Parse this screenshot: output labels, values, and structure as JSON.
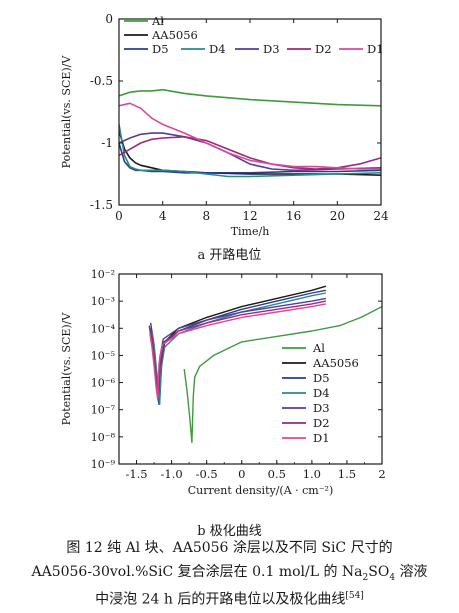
{
  "figure": {
    "subcaption_a": "a  开路电位",
    "subcaption_b": "b  极化曲线",
    "caption_line1": "图 12   纯 Al 块、AA5056 涂层以及不同 SiC 尺寸的",
    "caption_line2_pre": "AA5056-30vol.%SiC 复合涂层在 0.1 mol/L 的 Na",
    "caption_line2_sub1": "2",
    "caption_line2_mid": "SO",
    "caption_line2_sub2": "4",
    "caption_line2_post": " 溶液",
    "caption_line3_pre": "中浸泡 24 h 后的开路电位以及极化曲线",
    "caption_line3_sup": "[54]"
  },
  "chart_data": [
    {
      "type": "line",
      "xlabel": "Time/h",
      "ylabel": "Potential(vs. SCE)/V",
      "xlim": [
        0,
        24
      ],
      "ylim": [
        -1.5,
        0
      ],
      "xticks": [
        "0",
        "4",
        "8",
        "12",
        "16",
        "20",
        "24"
      ],
      "yticks": [
        "0",
        "-0.5",
        "-1",
        "-1.5"
      ],
      "legend_placement": "top",
      "series": [
        {
          "name": "Al",
          "color": "#3f9a3f",
          "x": [
            0,
            1,
            2,
            3,
            4,
            6,
            8,
            12,
            16,
            20,
            24
          ],
          "y": [
            -0.62,
            -0.59,
            -0.58,
            -0.58,
            -0.57,
            -0.6,
            -0.62,
            -0.65,
            -0.67,
            -0.69,
            -0.7
          ]
        },
        {
          "name": "AA5056",
          "color": "#1a1a1a",
          "x": [
            0,
            0.5,
            1,
            1.5,
            2,
            3,
            4,
            6,
            8,
            12,
            16,
            20,
            24
          ],
          "y": [
            -0.9,
            -1.05,
            -1.12,
            -1.16,
            -1.18,
            -1.2,
            -1.22,
            -1.23,
            -1.24,
            -1.25,
            -1.25,
            -1.25,
            -1.26
          ]
        },
        {
          "name": "D5",
          "color": "#283e8c",
          "x": [
            0,
            0.5,
            1,
            1.5,
            2,
            3,
            4,
            6,
            8,
            12,
            16,
            20,
            24
          ],
          "y": [
            -1.0,
            -1.15,
            -1.2,
            -1.22,
            -1.22,
            -1.23,
            -1.23,
            -1.24,
            -1.24,
            -1.24,
            -1.23,
            -1.23,
            -1.22
          ]
        },
        {
          "name": "D4",
          "color": "#2b8a85",
          "x": [
            0,
            0.5,
            1,
            1.5,
            2,
            3,
            4,
            6,
            8,
            10,
            12,
            16,
            20,
            24
          ],
          "y": [
            -0.85,
            -1.1,
            -1.19,
            -1.21,
            -1.22,
            -1.22,
            -1.22,
            -1.23,
            -1.25,
            -1.27,
            -1.27,
            -1.26,
            -1.25,
            -1.24
          ]
        },
        {
          "name": "D3",
          "color": "#5a3a9a",
          "x": [
            0,
            1,
            2,
            3,
            4,
            6,
            8,
            10,
            12,
            14,
            16,
            20,
            24
          ],
          "y": [
            -1.0,
            -0.96,
            -0.93,
            -0.92,
            -0.92,
            -0.95,
            -1.0,
            -1.08,
            -1.17,
            -1.21,
            -1.22,
            -1.21,
            -1.2
          ]
        },
        {
          "name": "D2",
          "color": "#9a2a7a",
          "x": [
            0,
            1,
            2,
            3,
            4,
            6,
            8,
            10,
            12,
            14,
            16,
            18,
            20,
            22,
            24
          ],
          "y": [
            -1.1,
            -1.05,
            -1.0,
            -0.97,
            -0.96,
            -0.95,
            -0.98,
            -1.05,
            -1.12,
            -1.17,
            -1.2,
            -1.21,
            -1.2,
            -1.17,
            -1.12
          ]
        },
        {
          "name": "D1",
          "color": "#d64a9a",
          "x": [
            0,
            1,
            2,
            3,
            4,
            6,
            8,
            10,
            12,
            14,
            16,
            18,
            20,
            22,
            24
          ],
          "y": [
            -0.7,
            -0.68,
            -0.72,
            -0.8,
            -0.85,
            -0.92,
            -1.0,
            -1.08,
            -1.14,
            -1.17,
            -1.19,
            -1.19,
            -1.2,
            -1.21,
            -1.21
          ]
        }
      ]
    },
    {
      "type": "line",
      "log_y": true,
      "xlabel": "Current density/(A · cm⁻²)",
      "ylabel": "Potential(vs. SCE)/V",
      "xlim": [
        -1.75,
        2
      ],
      "ylim_exp": [
        -9,
        -2
      ],
      "xticks": [
        "-1.5",
        "-1.0",
        "-0.5",
        "0",
        "0.5",
        "1.0",
        "1.5",
        "2"
      ],
      "yticks": [
        "10⁻²",
        "10⁻³",
        "10⁻⁴",
        "10⁻⁵",
        "10⁻⁶",
        "10⁻⁷",
        "10⁻⁸",
        "10⁻⁹"
      ],
      "legend_placement": "bottom-right",
      "series": [
        {
          "name": "Al",
          "color": "#3f9a3f",
          "x": [
            -0.82,
            -0.78,
            -0.74,
            -0.71,
            -0.69,
            -0.67,
            -0.6,
            -0.4,
            0,
            0.5,
            1.0,
            1.4,
            1.7,
            2.0
          ],
          "y_exp": [
            -5.5,
            -6.3,
            -7.3,
            -8.2,
            -6.5,
            -5.8,
            -5.4,
            -5.0,
            -4.5,
            -4.3,
            -4.1,
            -3.9,
            -3.6,
            -3.2
          ]
        },
        {
          "name": "AA5056",
          "color": "#1a1a1a",
          "x": [
            -1.3,
            -1.28,
            -1.24,
            -1.2,
            -1.17,
            -1.14,
            -1.1,
            -0.9,
            -0.5,
            0,
            0.5,
            1.0,
            1.2
          ],
          "y_exp": [
            -4.0,
            -4.4,
            -5.2,
            -6.3,
            -6.6,
            -5.2,
            -4.5,
            -4.0,
            -3.6,
            -3.2,
            -2.9,
            -2.6,
            -2.45
          ]
        },
        {
          "name": "D5",
          "color": "#283e8c",
          "x": [
            -1.3,
            -1.27,
            -1.23,
            -1.2,
            -1.18,
            -1.16,
            -1.12,
            -0.9,
            -0.5,
            0,
            0.5,
            1.0,
            1.2
          ],
          "y_exp": [
            -3.8,
            -4.3,
            -5.3,
            -6.5,
            -6.8,
            -5.3,
            -4.6,
            -4.1,
            -3.7,
            -3.3,
            -3.0,
            -2.7,
            -2.6
          ]
        },
        {
          "name": "D4",
          "color": "#2b8a85",
          "x": [
            -1.28,
            -1.25,
            -1.22,
            -1.19,
            -1.17,
            -1.15,
            -1.1,
            -0.9,
            -0.5,
            0,
            0.5,
            1.0,
            1.2
          ],
          "y_exp": [
            -4.1,
            -4.6,
            -5.4,
            -6.2,
            -6.8,
            -5.5,
            -4.7,
            -4.2,
            -3.8,
            -3.4,
            -3.1,
            -2.8,
            -2.7
          ]
        },
        {
          "name": "D3",
          "color": "#5a3a9a",
          "x": [
            -1.32,
            -1.29,
            -1.25,
            -1.22,
            -1.2,
            -1.17,
            -1.12,
            -0.9,
            -0.5,
            0,
            0.5,
            1.0,
            1.2
          ],
          "y_exp": [
            -3.9,
            -4.4,
            -5.2,
            -6.0,
            -6.5,
            -5.1,
            -4.4,
            -4.0,
            -3.7,
            -3.4,
            -3.2,
            -3.0,
            -2.9
          ]
        },
        {
          "name": "D2",
          "color": "#9a2a7a",
          "x": [
            -1.3,
            -1.27,
            -1.24,
            -1.21,
            -1.19,
            -1.16,
            -1.11,
            -0.9,
            -0.5,
            0,
            0.5,
            1.0,
            1.2
          ],
          "y_exp": [
            -4.0,
            -4.5,
            -5.3,
            -6.1,
            -6.4,
            -5.2,
            -4.5,
            -4.1,
            -3.8,
            -3.5,
            -3.3,
            -3.1,
            -3.0
          ]
        },
        {
          "name": "D1",
          "color": "#d64a9a",
          "x": [
            -1.31,
            -1.28,
            -1.25,
            -1.22,
            -1.2,
            -1.18,
            -1.13,
            -0.9,
            -0.5,
            0,
            0.5,
            1.0,
            1.2
          ],
          "y_exp": [
            -4.2,
            -4.7,
            -5.4,
            -6.2,
            -6.6,
            -5.3,
            -4.6,
            -4.2,
            -3.9,
            -3.6,
            -3.4,
            -3.2,
            -3.1
          ]
        }
      ]
    }
  ]
}
